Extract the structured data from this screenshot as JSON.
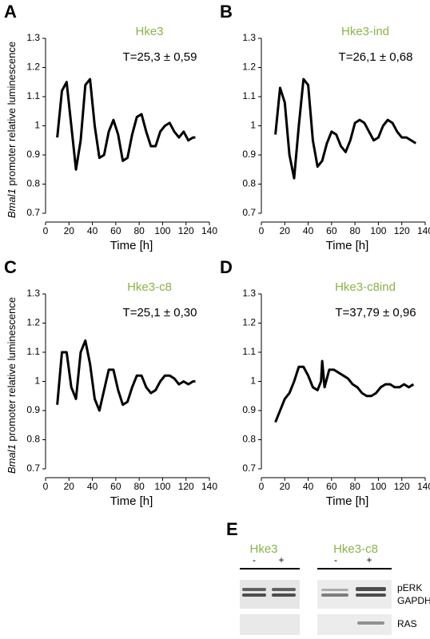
{
  "chart_data": [
    {
      "type": "line",
      "panel": "A",
      "title": "Hke3",
      "annotation": "T=25,3 ± 0,59",
      "ylabel": [
        "Bmal1",
        " promoter relative luminescence"
      ],
      "xlabel": "Time [h]",
      "xlim": [
        0,
        140
      ],
      "ylim": [
        0.7,
        1.3
      ],
      "xticks": [
        0,
        20,
        40,
        60,
        80,
        100,
        120,
        140
      ],
      "yticks": [
        0.7,
        0.8,
        0.9,
        1,
        1.1,
        1.2,
        1.3
      ],
      "series": [
        {
          "color": "#000000",
          "x": [
            10,
            14,
            18,
            22,
            26,
            30,
            34,
            38,
            42,
            46,
            50,
            54,
            58,
            62,
            66,
            70,
            74,
            78,
            82,
            86,
            90,
            94,
            98,
            102,
            106,
            110,
            114,
            118,
            122,
            126,
            128
          ],
          "values": [
            0.96,
            1.12,
            1.15,
            1.0,
            0.85,
            0.95,
            1.14,
            1.16,
            1.0,
            0.89,
            0.9,
            0.98,
            1.02,
            0.97,
            0.88,
            0.89,
            0.97,
            1.03,
            1.04,
            0.98,
            0.93,
            0.93,
            0.98,
            1.0,
            1.01,
            0.98,
            0.96,
            0.98,
            0.95,
            0.96,
            0.96
          ]
        }
      ]
    },
    {
      "type": "line",
      "panel": "B",
      "title": "Hke3-ind",
      "annotation": "T=26,1 ± 0,68",
      "xlabel": "Time [h]",
      "xlim": [
        0,
        140
      ],
      "ylim": [
        0.7,
        1.3
      ],
      "xticks": [
        0,
        20,
        40,
        60,
        80,
        100,
        120,
        140
      ],
      "yticks": [
        0.7,
        0.8,
        0.9,
        1,
        1.1,
        1.2,
        1.3
      ],
      "series": [
        {
          "color": "#000000",
          "x": [
            12,
            16,
            20,
            24,
            28,
            32,
            36,
            40,
            44,
            48,
            52,
            56,
            60,
            64,
            68,
            72,
            76,
            80,
            84,
            88,
            92,
            96,
            100,
            104,
            108,
            112,
            116,
            120,
            124,
            128,
            132
          ],
          "values": [
            0.97,
            1.13,
            1.08,
            0.9,
            0.82,
            1.0,
            1.16,
            1.14,
            0.95,
            0.86,
            0.88,
            0.94,
            0.98,
            0.97,
            0.93,
            0.91,
            0.95,
            1.01,
            1.02,
            1.01,
            0.98,
            0.95,
            0.96,
            1.0,
            1.02,
            1.01,
            0.98,
            0.96,
            0.96,
            0.95,
            0.94
          ]
        }
      ]
    },
    {
      "type": "line",
      "panel": "C",
      "title": "Hke3-c8",
      "annotation": "T=25,1 ± 0,30",
      "ylabel": [
        "Bmal1",
        " promoter relative luminescence"
      ],
      "xlabel": "Time [h]",
      "xlim": [
        0,
        140
      ],
      "ylim": [
        0.7,
        1.3
      ],
      "xticks": [
        0,
        20,
        40,
        60,
        80,
        100,
        120,
        140
      ],
      "yticks": [
        0.7,
        0.8,
        0.9,
        1,
        1.1,
        1.2,
        1.3
      ],
      "series": [
        {
          "color": "#000000",
          "x": [
            10,
            14,
            18,
            22,
            26,
            30,
            34,
            38,
            42,
            46,
            50,
            54,
            58,
            62,
            66,
            70,
            74,
            78,
            82,
            86,
            90,
            94,
            98,
            102,
            106,
            110,
            114,
            118,
            122,
            126,
            128
          ],
          "values": [
            0.92,
            1.1,
            1.1,
            0.98,
            0.94,
            1.1,
            1.14,
            1.06,
            0.94,
            0.9,
            0.97,
            1.04,
            1.04,
            0.97,
            0.92,
            0.93,
            0.98,
            1.02,
            1.02,
            0.98,
            0.96,
            0.97,
            1.0,
            1.02,
            1.02,
            1.01,
            0.99,
            1.0,
            0.99,
            1.0,
            1.0
          ]
        }
      ]
    },
    {
      "type": "line",
      "panel": "D",
      "title": "Hke3-c8ind",
      "annotation": "T=37,79 ± 0,96",
      "xlabel": "Time [h]",
      "xlim": [
        0,
        140
      ],
      "ylim": [
        0.7,
        1.3
      ],
      "xticks": [
        0,
        20,
        40,
        60,
        80,
        100,
        120,
        140
      ],
      "yticks": [
        0.7,
        0.8,
        0.9,
        1,
        1.1,
        1.2,
        1.3
      ],
      "series": [
        {
          "color": "#000000",
          "x": [
            12,
            16,
            20,
            24,
            28,
            32,
            36,
            40,
            44,
            48,
            51,
            52,
            54,
            58,
            62,
            66,
            70,
            74,
            78,
            82,
            86,
            90,
            94,
            98,
            102,
            106,
            110,
            114,
            118,
            122,
            126,
            130
          ],
          "values": [
            0.86,
            0.9,
            0.94,
            0.96,
            1.0,
            1.05,
            1.05,
            1.02,
            0.98,
            0.97,
            1.0,
            1.07,
            0.98,
            1.04,
            1.04,
            1.03,
            1.02,
            1.01,
            0.99,
            0.98,
            0.96,
            0.95,
            0.95,
            0.96,
            0.98,
            0.99,
            0.99,
            0.98,
            0.98,
            0.99,
            0.98,
            0.99
          ]
        }
      ]
    }
  ],
  "blot": {
    "panel": "E",
    "groups": [
      {
        "name": "Hke3",
        "lanes": [
          "-",
          "+"
        ]
      },
      {
        "name": "Hke3-c8",
        "lanes": [
          "-",
          "+"
        ]
      }
    ],
    "rows": [
      "pERK",
      "GAPDH",
      "RAS"
    ]
  }
}
